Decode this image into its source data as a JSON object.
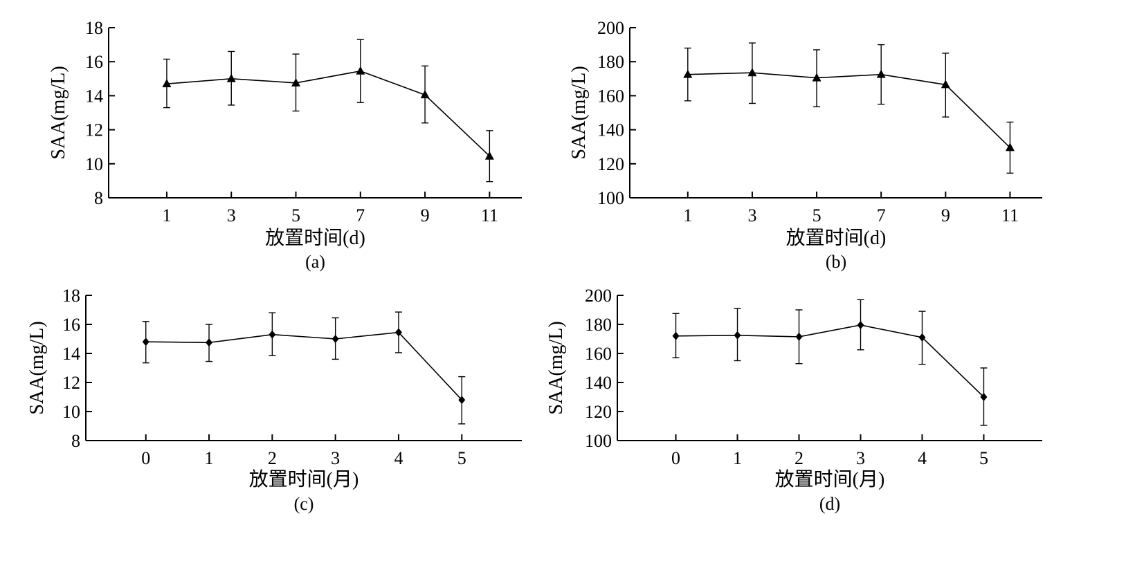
{
  "chart_data": [
    {
      "type": "line",
      "panel_label": "(a)",
      "xlabel": "放置时间(d)",
      "ylabel": "SAA(mg/L)",
      "x": [
        1,
        3,
        5,
        7,
        9,
        11
      ],
      "xlim": [
        -0.8,
        12
      ],
      "ylim": [
        8,
        18
      ],
      "yticks": [
        8,
        10,
        12,
        14,
        16,
        18
      ],
      "marker": "triangle",
      "series": [
        {
          "values": [
            14.7,
            15.0,
            14.75,
            15.45,
            14.05,
            10.45
          ],
          "error_low": [
            13.3,
            13.45,
            13.1,
            13.6,
            12.4,
            8.95
          ],
          "error_high": [
            16.15,
            16.6,
            16.45,
            17.3,
            15.75,
            11.95
          ]
        }
      ]
    },
    {
      "type": "line",
      "panel_label": "(b)",
      "xlabel": "放置时间(d)",
      "ylabel": "SAA(mg/L)",
      "x": [
        1,
        3,
        5,
        7,
        9,
        11
      ],
      "xlim": [
        -0.8,
        12
      ],
      "ylim": [
        100,
        200
      ],
      "yticks": [
        100,
        120,
        140,
        160,
        180,
        200
      ],
      "marker": "triangle",
      "series": [
        {
          "values": [
            172.5,
            173.5,
            170.5,
            172.5,
            166.5,
            129.5
          ],
          "error_low": [
            157,
            155.5,
            153.5,
            155,
            147.5,
            114.5
          ],
          "error_high": [
            188,
            191,
            187,
            190,
            185,
            144.5
          ]
        }
      ]
    },
    {
      "type": "line",
      "panel_label": "(c)",
      "xlabel": "放置时间(月)",
      "ylabel": "SAA(mg/L)",
      "x": [
        0,
        1,
        2,
        3,
        4,
        5
      ],
      "xlim": [
        -0.95,
        5.95
      ],
      "ylim": [
        8,
        18
      ],
      "yticks": [
        8,
        10,
        12,
        14,
        16,
        18
      ],
      "marker": "diamond",
      "series": [
        {
          "values": [
            14.8,
            14.75,
            15.3,
            15.0,
            15.45,
            10.8
          ],
          "error_low": [
            13.35,
            13.45,
            13.85,
            13.6,
            14.05,
            9.15
          ],
          "error_high": [
            16.2,
            16.0,
            16.8,
            16.45,
            16.85,
            12.4
          ]
        }
      ]
    },
    {
      "type": "line",
      "panel_label": "(d)",
      "xlabel": "放置时间(月)",
      "ylabel": "SAA(mg/L)",
      "x": [
        0,
        1,
        2,
        3,
        4,
        5
      ],
      "xlim": [
        -0.95,
        5.95
      ],
      "ylim": [
        100,
        200
      ],
      "yticks": [
        100,
        120,
        140,
        160,
        180,
        200
      ],
      "marker": "diamond",
      "series": [
        {
          "values": [
            172,
            172.5,
            171.5,
            179.5,
            171,
            130
          ],
          "error_low": [
            157,
            155,
            153,
            162.5,
            152.5,
            110.5
          ],
          "error_high": [
            187.5,
            191,
            190,
            197,
            189,
            150
          ]
        }
      ]
    }
  ]
}
